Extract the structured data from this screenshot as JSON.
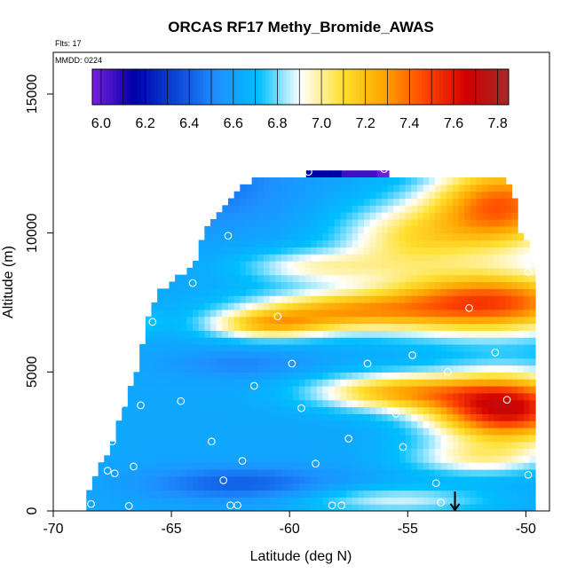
{
  "chart_data": {
    "type": "heatmap",
    "title": "ORCAS RF17 Methy_Bromide_AWAS",
    "flights_label": "Flts: 17",
    "date_label": "MMDD: 0224",
    "xlabel": "Latitude (deg N)",
    "ylabel": "Altitude (m)",
    "xlim": [
      -70,
      -49
    ],
    "ylim": [
      0,
      16500
    ],
    "x_ticks": [
      -70,
      -65,
      -60,
      -55,
      -50
    ],
    "y_ticks": [
      0,
      5000,
      10000,
      15000
    ],
    "colorbar": {
      "min": 5.96,
      "max": 7.85,
      "ticks": [
        6.0,
        6.2,
        6.4,
        6.6,
        6.8,
        7.0,
        7.2,
        7.4,
        7.6,
        7.8
      ],
      "tick_labels": [
        "6.0",
        "6.2",
        "6.4",
        "6.6",
        "6.8",
        "7.0",
        "7.2",
        "7.4",
        "7.6",
        "7.8"
      ],
      "colors": [
        "#7b1fe0",
        "#0000a8",
        "#0b46d8",
        "#1e90ff",
        "#00bfff",
        "#ffffff",
        "#ffe030",
        "#ffa500",
        "#ff4500",
        "#d00000",
        "#a52a2a"
      ]
    },
    "samples": [
      [
        -68.4,
        250
      ],
      [
        -67.7,
        1450
      ],
      [
        -67.5,
        2500
      ],
      [
        -67.2,
        3800
      ],
      [
        -67.4,
        1350
      ],
      [
        -66.6,
        1600
      ],
      [
        -66.3,
        3800
      ],
      [
        -64.6,
        3950
      ],
      [
        -64.1,
        8200
      ],
      [
        -63.3,
        2500
      ],
      [
        -62.8,
        1100
      ],
      [
        -62.5,
        200
      ],
      [
        -62.2,
        200
      ],
      [
        -62.0,
        1800
      ],
      [
        -61.5,
        4500
      ],
      [
        -62.6,
        9900
      ],
      [
        -61.9,
        12000
      ],
      [
        -59.9,
        5300
      ],
      [
        -59.5,
        3700
      ],
      [
        -59.2,
        12200
      ],
      [
        -58.9,
        1700
      ],
      [
        -57.5,
        2600
      ],
      [
        -56.7,
        5300
      ],
      [
        -55.5,
        3500
      ],
      [
        -55.2,
        2300
      ],
      [
        -54.8,
        5600
      ],
      [
        -53.8,
        1000
      ],
      [
        -53.6,
        300
      ],
      [
        -52.4,
        7300
      ],
      [
        -51.3,
        5700
      ],
      [
        -50.8,
        4000
      ],
      [
        -50.5,
        12000
      ],
      [
        -49.9,
        8600
      ],
      [
        -49.9,
        1300
      ],
      [
        -57.8,
        200
      ],
      [
        -58.2,
        200
      ],
      [
        -56.0,
        12300
      ],
      [
        -65.8,
        6800
      ],
      [
        -60.5,
        7000
      ],
      [
        -53.3,
        5000
      ],
      [
        -66.8,
        180
      ],
      [
        -66.7,
        5600
      ]
    ],
    "arrow": {
      "x": -53.0,
      "y_top": 700,
      "y_bottom": 0
    },
    "field": {
      "xs": [
        -68.5,
        -67.5,
        -66.5,
        -65.5,
        -64.5,
        -63.5,
        -62.5,
        -61.5,
        -60.5,
        -59.5,
        -58.5,
        -57.5,
        -56.5,
        -55.5,
        -54.5,
        -53.5,
        -52.5,
        -51.5,
        -50.5,
        -49.7
      ],
      "ys": [
        0,
        500,
        1000,
        1500,
        2000,
        2500,
        3000,
        3500,
        4000,
        4500,
        5000,
        5500,
        6000,
        6500,
        7000,
        7500,
        8000,
        8500,
        9000,
        9500,
        10000,
        10500,
        11000,
        11500,
        12000
      ],
      "top_boundary": [
        [
          -68.5,
          800
        ],
        [
          -67.5,
          2500
        ],
        [
          -67.0,
          3800
        ],
        [
          -66.5,
          5000
        ],
        [
          -66.0,
          7000
        ],
        [
          -65.5,
          8000
        ],
        [
          -65.0,
          8200
        ],
        [
          -64.0,
          8900
        ],
        [
          -63.5,
          10300
        ],
        [
          -62.5,
          11300
        ],
        [
          -61.5,
          12000
        ],
        [
          -51.0,
          12000
        ],
        [
          -50.5,
          11400
        ],
        [
          -50.2,
          10000
        ],
        [
          -49.8,
          9500
        ],
        [
          -49.6,
          8500
        ],
        [
          -49.6,
          500
        ]
      ],
      "top_strip": {
        "x0": -59.3,
        "x1": -55.8,
        "y0": 12000,
        "y1": 12250
      }
    }
  }
}
